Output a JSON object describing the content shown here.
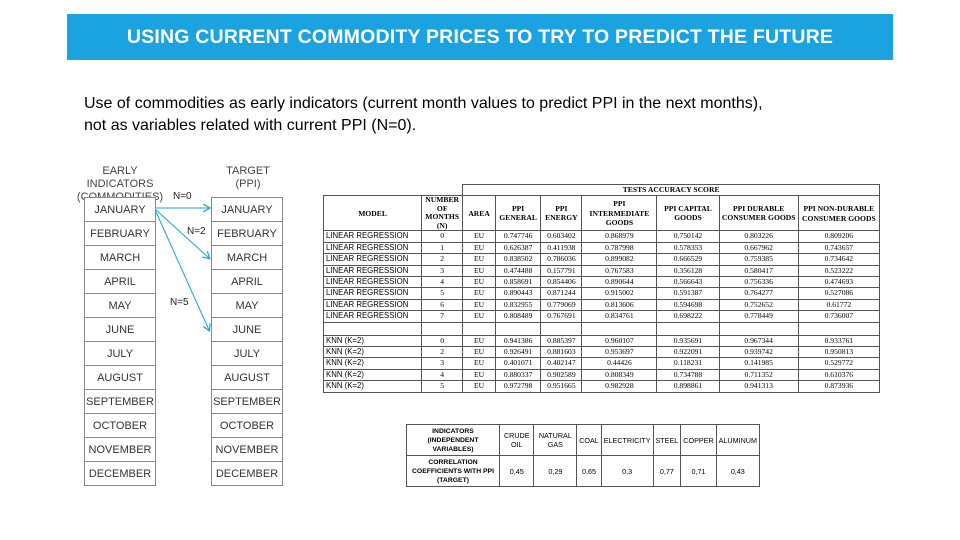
{
  "title": "USING CURRENT COMMODITY PRICES TO TRY TO PREDICT THE FUTURE",
  "subtitle_line1": "Use of commodities as early indicators (current month values to predict PPI in the next months),",
  "subtitle_line2": "not as variables related with current PPI (N=0).",
  "left_heading": {
    "line1": "EARLY INDICATORS",
    "line2": "(COMMODITIES)"
  },
  "right_heading": {
    "line1": "TARGET",
    "line2": "(PPI)"
  },
  "months": [
    "JANUARY",
    "FEBRUARY",
    "MARCH",
    "APRIL",
    "MAY",
    "JUNE",
    "JULY",
    "AUGUST",
    "SEPTEMBER",
    "OCTOBER",
    "NOVEMBER",
    "DECEMBER"
  ],
  "arrow_labels": [
    "N=0",
    "N=2",
    "N=5"
  ],
  "arrow_color": "#1aa3e0",
  "accent_color": "#1aa3e0",
  "accuracy_table": {
    "caption": "TESTS ACCURACY SCORE",
    "headers": {
      "model": "MODEL",
      "months": "NUMBER OF MONTHS (N)",
      "area": "AREA",
      "ppi_general": "PPI GENERAL",
      "ppi_energy": "PPI ENERGY",
      "ppi_intermediate": "PPI INTERMEDIATE GOODS",
      "ppi_capital": "PPI CAPITAL GOODS",
      "ppi_durable": "PPI DURABLE CONSUMER GOODS",
      "ppi_nondurable": "PPI NON-DURABLE CONSUMER GOODS"
    },
    "linear_rows": [
      {
        "model": "LINEAR REGRESSION",
        "n": "0",
        "area": "EU",
        "general": "0.747746",
        "energy": "0.603402",
        "intermediate": "0.868979",
        "capital": "0.750142",
        "durable": "0.803226",
        "nondurable": "0.809206"
      },
      {
        "model": "LINEAR REGRESSION",
        "n": "1",
        "area": "EU",
        "general": "0.626387",
        "energy": "0.411938",
        "intermediate": "0.787998",
        "capital": "0.578353",
        "durable": "0.667962",
        "nondurable": "0.743657"
      },
      {
        "model": "LINEAR REGRESSION",
        "n": "2",
        "area": "EU",
        "general": "0.838502",
        "energy": "0.786036",
        "intermediate": "0.899082",
        "capital": "0.666529",
        "durable": "0.759385",
        "nondurable": "0.734642"
      },
      {
        "model": "LINEAR REGRESSION",
        "n": "3",
        "area": "EU",
        "general": "0.474488",
        "energy": "0.157791",
        "intermediate": "0.767583",
        "capital": "0.356128",
        "durable": "0.580417",
        "nondurable": "0.523222"
      },
      {
        "model": "LINEAR REGRESSION",
        "n": "4",
        "area": "EU",
        "general": "0.858691",
        "energy": "0.854406",
        "intermediate": "0.890644",
        "capital": "0.566643",
        "durable": "0.756336",
        "nondurable": "0.474693"
      },
      {
        "model": "LINEAR REGRESSION",
        "n": "5",
        "area": "EU",
        "general": "0.890443",
        "energy": "0.871244",
        "intermediate": "0.915002",
        "capital": "0.591387",
        "durable": "0.764277",
        "nondurable": "0.527086"
      },
      {
        "model": "LINEAR REGRESSION",
        "n": "6",
        "area": "EU",
        "general": "0.832955",
        "energy": "0.779069",
        "intermediate": "0.813606",
        "capital": "0.594698",
        "durable": "0.752652",
        "nondurable": "0.61772"
      },
      {
        "model": "LINEAR REGRESSION",
        "n": "7",
        "area": "EU",
        "general": "0.808489",
        "energy": "0.767691",
        "intermediate": "0.834761",
        "capital": "0.698222",
        "durable": "0.778449",
        "nondurable": "0.736007"
      }
    ],
    "knn_rows": [
      {
        "model": "KNN (K=2)",
        "n": "0",
        "area": "EU",
        "general": "0.941386",
        "energy": "0.885397",
        "intermediate": "0.960107",
        "capital": "0.935691",
        "durable": "0.967344",
        "nondurable": "0.933761"
      },
      {
        "model": "KNN (K=2)",
        "n": "2",
        "area": "EU",
        "general": "0.926491",
        "energy": "0.881603",
        "intermediate": "0.953697",
        "capital": "0.922091",
        "durable": "0.939742",
        "nondurable": "0.950813"
      },
      {
        "model": "KNN (K=2)",
        "n": "3",
        "area": "EU",
        "general": "0.401071",
        "energy": "0.402147",
        "intermediate": "0.44426",
        "capital": "0.118231",
        "durable": "0.141985",
        "nondurable": "0.529772"
      },
      {
        "model": "KNN (K=2)",
        "n": "4",
        "area": "EU",
        "general": "0.880337",
        "energy": "0.902589",
        "intermediate": "0.808349",
        "capital": "0.734788",
        "durable": "0.711352",
        "nondurable": "0.610376"
      },
      {
        "model": "KNN (K=2)",
        "n": "5",
        "area": "EU",
        "general": "0.972798",
        "energy": "0.951665",
        "intermediate": "0.982928",
        "capital": "0.898861",
        "durable": "0.941313",
        "nondurable": "0.873936"
      }
    ]
  },
  "correlation_table": {
    "row1_header": "INDICATORS (INDEPENDENT VARIABLES)",
    "row2_header": "CORRELATION COEFFICIENTS WITH PPI (TARGET)",
    "indicators": [
      "CRUDE OIL",
      "NATURAL GAS",
      "COAL",
      "ELECTRICITY",
      "STEEL",
      "COPPER",
      "ALUMINUM"
    ],
    "coefficients": [
      "0,45",
      "0,29",
      "0,65",
      "0,3",
      "0,77",
      "0,71",
      "0,43"
    ]
  }
}
